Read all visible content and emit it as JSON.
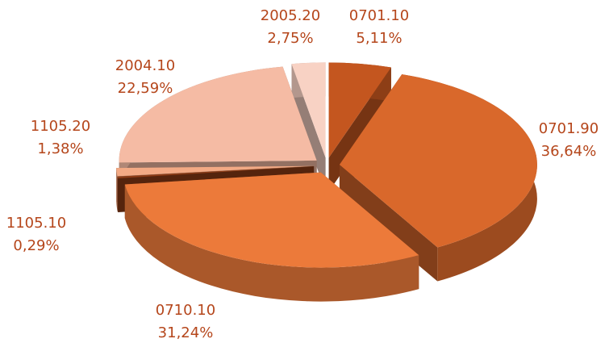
{
  "chart_data": {
    "type": "pie",
    "categories": [
      "0701.10",
      "0701.90",
      "0710.10",
      "1105.10",
      "1105.20",
      "2004.10",
      "2005.20"
    ],
    "values": [
      5.11,
      36.64,
      31.24,
      0.29,
      1.38,
      22.59,
      2.75
    ],
    "value_labels": [
      "5,11%",
      "36,64%",
      "31,24%",
      "0,29%",
      "1,38%",
      "22,59%",
      "2,75%"
    ],
    "colors": [
      "#c4561f",
      "#d9682b",
      "#ec7a3a",
      "#8e3c16",
      "#f3aa85",
      "#f5bba4",
      "#f8d2c4"
    ]
  }
}
